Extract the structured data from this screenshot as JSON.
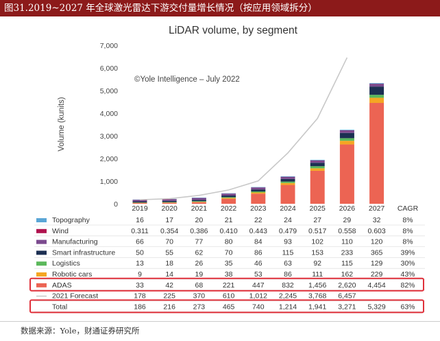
{
  "figure_caption": "图31.2019~2027 年全球激光雷达下游交付量增长情况（按应用领域拆分）",
  "source_note": "数据来源：Yole，财通证券研究所",
  "colors": {
    "banner": "#8c1a1a",
    "highlight_box": "#e0303a",
    "forecast_line": "#c8c8c8"
  },
  "chart_data": {
    "type": "bar",
    "stacked": true,
    "title": "LiDAR volume, by segment",
    "annotation": "©Yole Intelligence – July 2022",
    "ylabel": "Volume (kunits)",
    "ylim": [
      0,
      7000
    ],
    "yticks": [
      0,
      1000,
      2000,
      3000,
      4000,
      5000,
      6000,
      7000
    ],
    "ytick_labels": [
      "0",
      "1,000",
      "2,000",
      "3,000",
      "4,000",
      "5,000",
      "6,000",
      "7,000"
    ],
    "grid": false,
    "categories": [
      "2019",
      "2020",
      "2021",
      "2022",
      "2023",
      "2024",
      "2025",
      "2026",
      "2027"
    ],
    "cagr_header": "CAGR",
    "series": [
      {
        "name": "Topography",
        "color": "#5aa6d6",
        "values": [
          16,
          17,
          20,
          21,
          22,
          24,
          27,
          29,
          32
        ],
        "labels": [
          "16",
          "17",
          "20",
          "21",
          "22",
          "24",
          "27",
          "29",
          "32"
        ],
        "cagr": "8%"
      },
      {
        "name": "Wind",
        "color": "#b0124e",
        "values": [
          0.311,
          0.354,
          0.386,
          0.41,
          0.443,
          0.479,
          0.517,
          0.558,
          0.603
        ],
        "labels": [
          "0.311",
          "0.354",
          "0.386",
          "0.410",
          "0.443",
          "0.479",
          "0.517",
          "0.558",
          "0.603"
        ],
        "cagr": "8%"
      },
      {
        "name": "Manufacturing",
        "color": "#7b4a8e",
        "values": [
          66,
          70,
          77,
          80,
          84,
          93,
          102,
          110,
          120
        ],
        "labels": [
          "66",
          "70",
          "77",
          "80",
          "84",
          "93",
          "102",
          "110",
          "120"
        ],
        "cagr": "8%"
      },
      {
        "name": "Smart infrastructure",
        "color": "#1c2f52",
        "values": [
          50,
          55,
          62,
          70,
          86,
          115,
          153,
          233,
          365
        ],
        "labels": [
          "50",
          "55",
          "62",
          "70",
          "86",
          "115",
          "153",
          "233",
          "365"
        ],
        "cagr": "39%"
      },
      {
        "name": "Logistics",
        "color": "#5bb85b",
        "values": [
          13,
          18,
          26,
          35,
          46,
          63,
          92,
          115,
          129
        ],
        "labels": [
          "13",
          "18",
          "26",
          "35",
          "46",
          "63",
          "92",
          "115",
          "129"
        ],
        "cagr": "30%"
      },
      {
        "name": "Robotic cars",
        "color": "#f5a623",
        "values": [
          9,
          14,
          19,
          38,
          53,
          86,
          111,
          162,
          229
        ],
        "labels": [
          "9",
          "14",
          "19",
          "38",
          "53",
          "86",
          "111",
          "162",
          "229"
        ],
        "cagr": "43%"
      },
      {
        "name": "ADAS",
        "color": "#ec6453",
        "values": [
          33,
          42,
          68,
          221,
          447,
          832,
          1456,
          2620,
          4454
        ],
        "labels": [
          "33",
          "42",
          "68",
          "221",
          "447",
          "832",
          "1,456",
          "2,620",
          "4,454"
        ],
        "cagr": "82%"
      }
    ],
    "forecast_line": {
      "name": "2021 Forecast",
      "values": [
        178,
        225,
        370,
        610,
        1012,
        2245,
        3768,
        6457,
        null
      ],
      "labels": [
        "178",
        "225",
        "370",
        "610",
        "1,012",
        "2,245",
        "3,768",
        "6,457",
        ""
      ]
    },
    "total": {
      "name": "Total",
      "values": [
        186,
        216,
        273,
        465,
        740,
        1214,
        1941,
        3271,
        5329
      ],
      "labels": [
        "186",
        "216",
        "273",
        "465",
        "740",
        "1,214",
        "1,941",
        "3,271",
        "5,329"
      ],
      "cagr": "63%"
    },
    "table_rows": [
      {
        "name": "Topography",
        "values": [
          "16",
          "17",
          "20",
          "21",
          "22",
          "24",
          "27",
          "29",
          "32"
        ],
        "cagr": "8%"
      },
      {
        "name": "Wind",
        "values": [
          "0.311",
          "0.354",
          "0.386",
          "0.410",
          "0.443",
          "0.479",
          "0.517",
          "0.558",
          "0.603"
        ],
        "cagr": "8%"
      },
      {
        "name": "Manufacturing",
        "values": [
          "66",
          "70",
          "77",
          "80",
          "84",
          "93",
          "102",
          "110",
          "120"
        ],
        "cagr": "8%"
      },
      {
        "name": "Smart infrastructure",
        "values": [
          "50",
          "55",
          "62",
          "70",
          "86",
          "115",
          "153",
          "233",
          "365"
        ],
        "cagr": "39%"
      },
      {
        "name": "Logistics",
        "values": [
          "13",
          "18",
          "26",
          "35",
          "46",
          "63",
          "92",
          "115",
          "129"
        ],
        "cagr": "30%"
      },
      {
        "name": "Robotic cars",
        "values": [
          "9",
          "14",
          "19",
          "38",
          "53",
          "86",
          "111",
          "162",
          "229"
        ],
        "cagr": "43%"
      },
      {
        "name": "ADAS",
        "values": [
          "33",
          "42",
          "68",
          "221",
          "447",
          "832",
          "1,456",
          "2,620",
          "4,454"
        ],
        "cagr": "82%"
      },
      {
        "name": "2021 Forecast",
        "values": [
          "178",
          "225",
          "370",
          "610",
          "1,012",
          "2,245",
          "3,768",
          "6,457",
          ""
        ],
        "cagr": ""
      },
      {
        "name": "Total",
        "values": [
          "186",
          "216",
          "273",
          "465",
          "740",
          "1,214",
          "1,941",
          "3,271",
          "5,329"
        ],
        "cagr": "63%"
      }
    ],
    "highlighted_rows": [
      "ADAS",
      "Total"
    ]
  }
}
